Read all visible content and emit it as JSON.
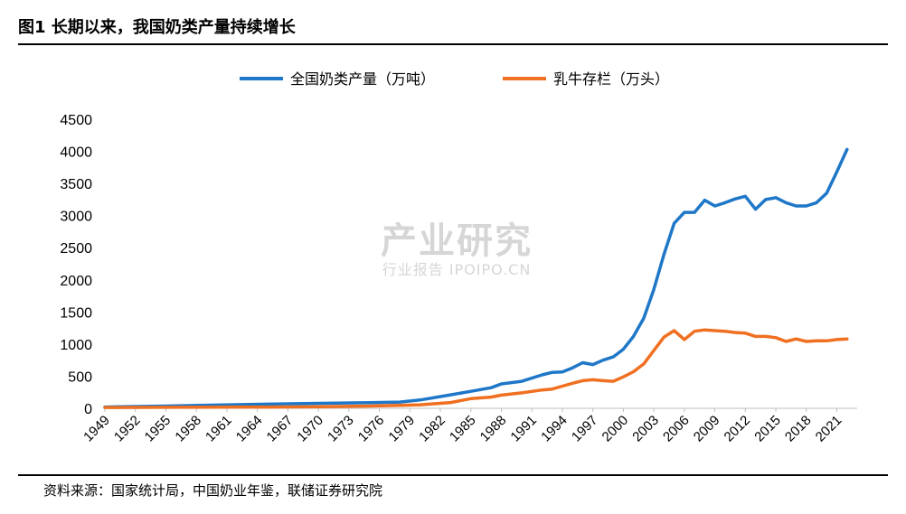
{
  "figure": {
    "title": "图1   长期以来，我国奶类产量持续增长",
    "source": "资料来源：国家统计局，中国奶业年鉴，联储证券研究院"
  },
  "watermark": {
    "main": "产业研究",
    "sub": "行业报告 IPOIPO.CN"
  },
  "chart_data": {
    "type": "line",
    "title": "",
    "xlabel": "",
    "ylabel": "",
    "xlim": [
      1949,
      2023
    ],
    "ylim": [
      0,
      4500
    ],
    "y_ticks": [
      0,
      500,
      1000,
      1500,
      2000,
      2500,
      3000,
      3500,
      4000,
      4500
    ],
    "x_ticks": [
      1949,
      1952,
      1955,
      1958,
      1961,
      1964,
      1967,
      1970,
      1973,
      1976,
      1979,
      1982,
      1985,
      1988,
      1991,
      1994,
      1997,
      2000,
      2003,
      2006,
      2009,
      2012,
      2015,
      2018,
      2021
    ],
    "grid": false,
    "legend_position": "top-center",
    "series": [
      {
        "name": "全国奶类产量（万吨）",
        "color": "#1f77c8",
        "x": [
          1949,
          1955,
          1960,
          1965,
          1970,
          1975,
          1978,
          1980,
          1983,
          1985,
          1987,
          1988,
          1990,
          1992,
          1993,
          1994,
          1995,
          1996,
          1997,
          1998,
          1999,
          2000,
          2001,
          2002,
          2003,
          2004,
          2005,
          2006,
          2007,
          2008,
          2009,
          2010,
          2011,
          2012,
          2013,
          2014,
          2015,
          2016,
          2017,
          2018,
          2019,
          2020,
          2021,
          2022
        ],
        "y": [
          20,
          35,
          50,
          65,
          78,
          88,
          97,
          130,
          210,
          265,
          320,
          380,
          420,
          520,
          560,
          565,
          630,
          710,
          680,
          750,
          800,
          920,
          1120,
          1400,
          1850,
          2400,
          2880,
          3050,
          3050,
          3240,
          3150,
          3200,
          3260,
          3300,
          3100,
          3250,
          3280,
          3200,
          3150,
          3150,
          3200,
          3350,
          3680,
          4030
        ]
      },
      {
        "name": "乳牛存栏（万头）",
        "color": "#f07021",
        "x": [
          1949,
          1955,
          1960,
          1965,
          1970,
          1975,
          1978,
          1980,
          1983,
          1985,
          1987,
          1988,
          1990,
          1992,
          1993,
          1994,
          1995,
          1996,
          1997,
          1998,
          1999,
          2000,
          2001,
          2002,
          2003,
          2004,
          2005,
          2006,
          2007,
          2008,
          2009,
          2010,
          2011,
          2012,
          2013,
          2014,
          2015,
          2016,
          2017,
          2018,
          2019,
          2020,
          2021,
          2022
        ],
        "y": [
          12,
          15,
          18,
          20,
          25,
          35,
          45,
          55,
          90,
          150,
          175,
          205,
          240,
          285,
          300,
          345,
          390,
          430,
          445,
          430,
          420,
          490,
          570,
          690,
          900,
          1110,
          1210,
          1070,
          1200,
          1220,
          1210,
          1200,
          1180,
          1170,
          1120,
          1120,
          1100,
          1040,
          1080,
          1040,
          1050,
          1050,
          1070,
          1080
        ]
      }
    ]
  }
}
